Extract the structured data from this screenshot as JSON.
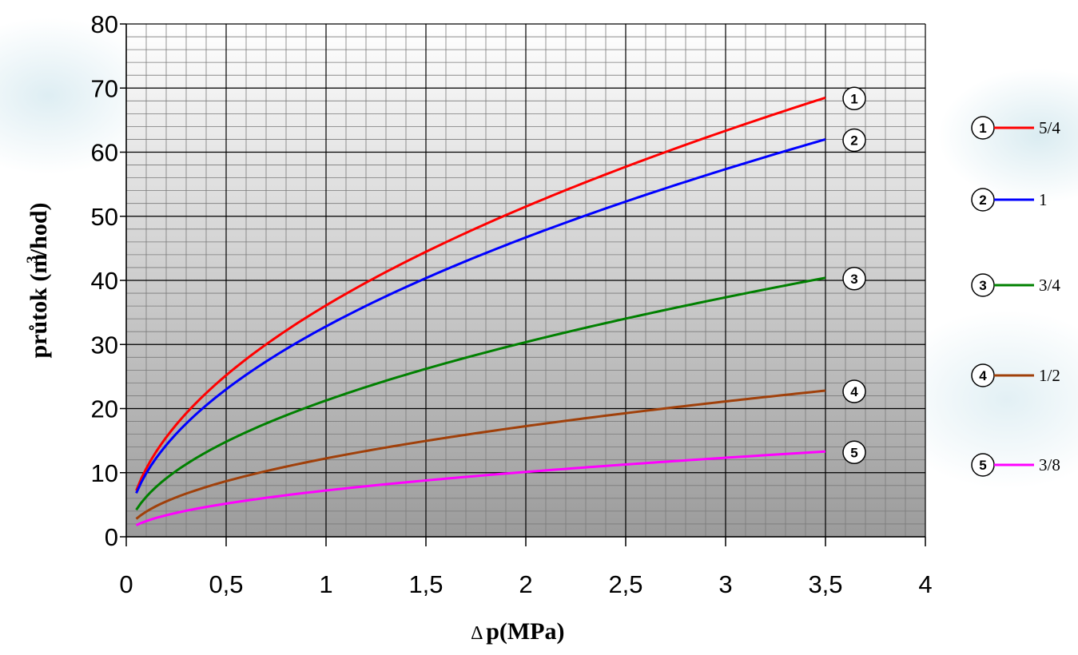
{
  "chart_data": {
    "type": "line",
    "title": "",
    "xlabel_delta": "∆",
    "xlabel": "p(MPa)",
    "ylabel": "průtok (m³/hod)",
    "ylabel_parts": {
      "before": "průtok (m",
      "sup": "3",
      "after": "/hod)"
    },
    "xlim": [
      0,
      4
    ],
    "ylim": [
      0,
      80
    ],
    "x_ticks": [
      0,
      0.5,
      1,
      1.5,
      2,
      2.5,
      3,
      3.5,
      4
    ],
    "x_tick_labels": [
      "0",
      "0,5",
      "1",
      "1,5",
      "2",
      "2,5",
      "3",
      "3,5",
      "4"
    ],
    "y_ticks": [
      0,
      10,
      20,
      30,
      40,
      50,
      60,
      70,
      80
    ],
    "y_tick_labels": [
      "0",
      "10",
      "20",
      "30",
      "40",
      "50",
      "60",
      "70",
      "80"
    ],
    "grid": {
      "major_x_step": 0.5,
      "minor_x_step": 0.1,
      "major_y_step": 10,
      "minor_y_step": 2
    },
    "legend_position": "right",
    "x_range": [
      0.05,
      3.5
    ],
    "series": [
      {
        "name": "5/4",
        "marker": "1",
        "color": "#ff0000",
        "y_start": 7.2,
        "y_end": 68.5
      },
      {
        "name": "1",
        "marker": "2",
        "color": "#0000ff",
        "y_start": 6.8,
        "y_end": 62.0
      },
      {
        "name": "3/4",
        "marker": "3",
        "color": "#008000",
        "y_start": 4.2,
        "y_end": 40.4
      },
      {
        "name": "1/2",
        "marker": "4",
        "color": "#a0400a",
        "y_start": 2.8,
        "y_end": 22.8
      },
      {
        "name": "3/8",
        "marker": "5",
        "color": "#ff00ff",
        "y_start": 1.8,
        "y_end": 13.3
      }
    ]
  }
}
